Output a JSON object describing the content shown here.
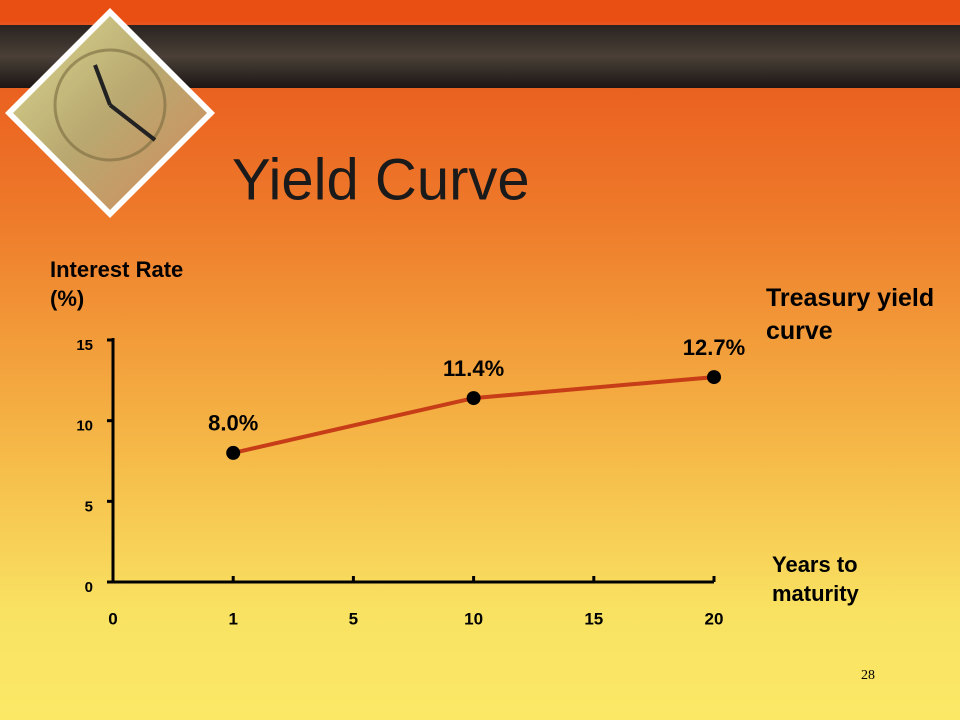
{
  "title": "Yield Curve",
  "page_number": "28",
  "chart_data": {
    "type": "line",
    "y_label": "Interest Rate (%)",
    "x_label": "Years to maturity",
    "x": [
      1,
      10,
      20
    ],
    "series": [
      {
        "name": "Treasury yield curve",
        "color": "#c63d17",
        "values": [
          8.0,
          11.4,
          12.7
        ],
        "value_labels": [
          "8.0%",
          "11.4%",
          "12.7%"
        ]
      }
    ],
    "xlim": [
      0,
      20
    ],
    "xticks": [
      0,
      1,
      5,
      10,
      15,
      20
    ],
    "ylim": [
      0,
      15
    ],
    "yticks": [
      0,
      5,
      10,
      15
    ],
    "marker_color": "#000000"
  }
}
